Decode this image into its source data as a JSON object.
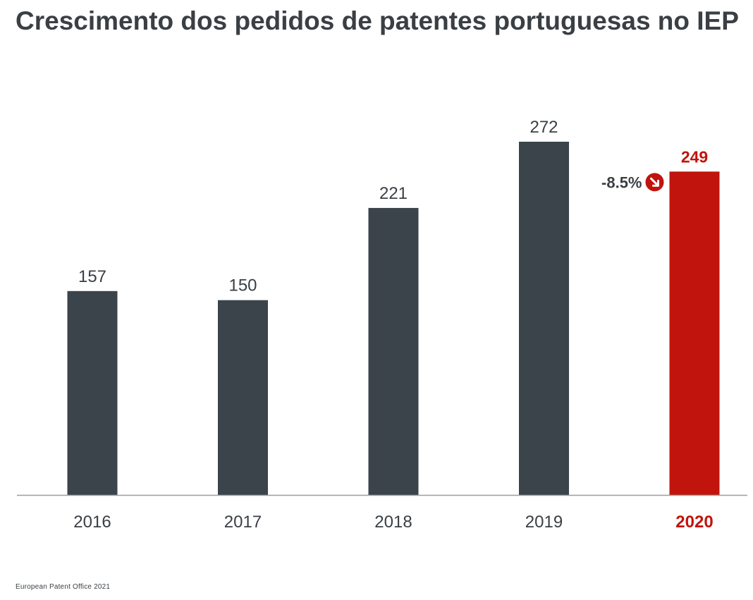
{
  "chart_data": {
    "type": "bar",
    "title": "Crescimento dos pedidos de patentes portuguesas no IEP",
    "categories": [
      "2016",
      "2017",
      "2018",
      "2019",
      "2020"
    ],
    "values": [
      157,
      150,
      221,
      272,
      249
    ],
    "value_labels": [
      "157",
      "150",
      "221",
      "272",
      "249"
    ],
    "highlight_index": 4,
    "bar_color": "#3b444b",
    "highlight_color": "#c0140c",
    "annotation": {
      "text": "-8.5%",
      "icon": "down-right-arrow-icon",
      "between": [
        3,
        4
      ]
    },
    "xlabel": "",
    "ylabel": "",
    "ylim": [
      0,
      272
    ],
    "grid": false,
    "legend": "none"
  },
  "source": "European Patent Office 2021"
}
